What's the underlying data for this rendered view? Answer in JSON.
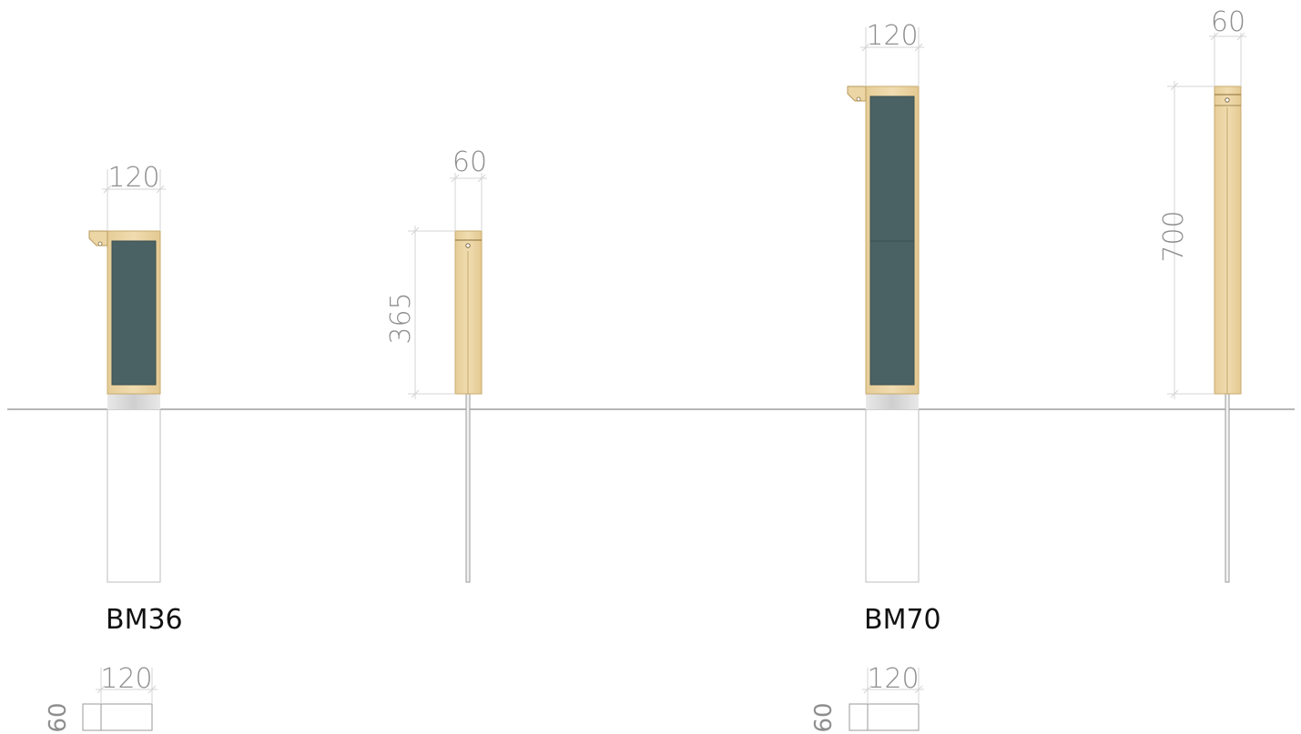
{
  "colors": {
    "wood": "#ecd6a5",
    "wood_edge": "#c8ab6e",
    "panel": "#4a6264",
    "ground": "#8a8a8a",
    "base": "#e3e3e3",
    "dimension": "#8e8e8e",
    "label": "#111111"
  },
  "models": [
    {
      "name": "BM36",
      "front_width": "120",
      "side_width": "60",
      "height": "365",
      "plan_width": "120",
      "plan_depth": "60"
    },
    {
      "name": "BM70",
      "front_width": "120",
      "side_width": "60",
      "height": "700",
      "plan_width": "120",
      "plan_depth": "60"
    }
  ]
}
